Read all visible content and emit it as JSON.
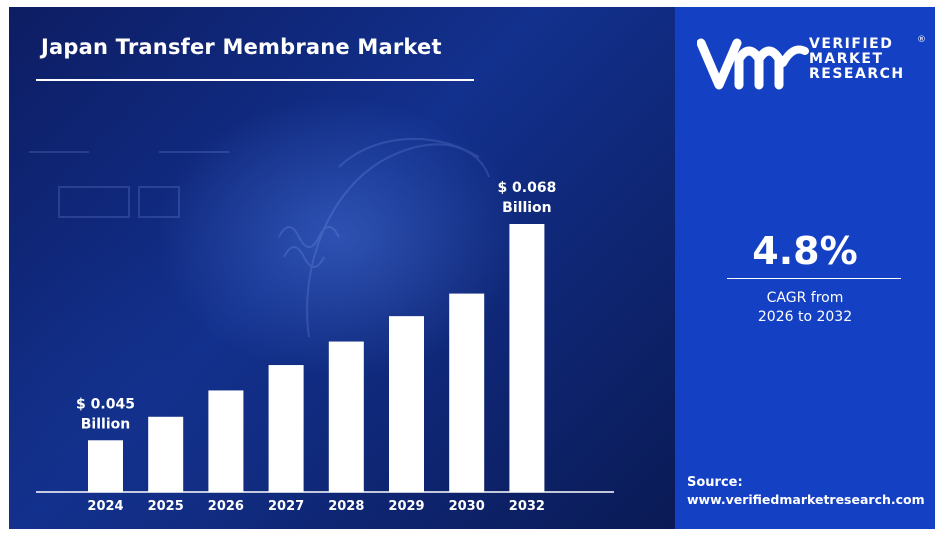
{
  "colors": {
    "chart_background": "#0f2a80",
    "side_panel": "#1440c4",
    "bars": "#ffffff",
    "text": "#ffffff"
  },
  "sidebar": {
    "logo_icon": "vmr-logo-icon",
    "brand_lines": [
      "VERIFIED",
      "MARKET",
      "RESEARCH"
    ],
    "registered": "®",
    "cagr_value": "4.8%",
    "cagr_label_lines": [
      "CAGR from",
      "2026 to 2032"
    ],
    "source_title": "Source:",
    "source_url": "www.verifiedmarketresearch.com"
  },
  "chart_data": {
    "type": "bar",
    "title": "Japan Transfer Membrane Market",
    "categories": [
      "2024",
      "2025",
      "2026",
      "2027",
      "2028",
      "2029",
      "2030",
      "2032"
    ],
    "values": [
      0.045,
      0.0475,
      0.0503,
      0.053,
      0.0555,
      0.0582,
      0.0606,
      0.068
    ],
    "units": "USD Billion",
    "data_labels": [
      {
        "category": "2024",
        "lines": [
          "$  0.045",
          "Billion"
        ]
      },
      {
        "category": "2032",
        "lines": [
          "$ 0.068",
          "Billion"
        ]
      }
    ],
    "xlabel": "",
    "ylabel": "",
    "ylim": [
      0.0395,
      0.068
    ],
    "grid": false,
    "legend": "none"
  }
}
